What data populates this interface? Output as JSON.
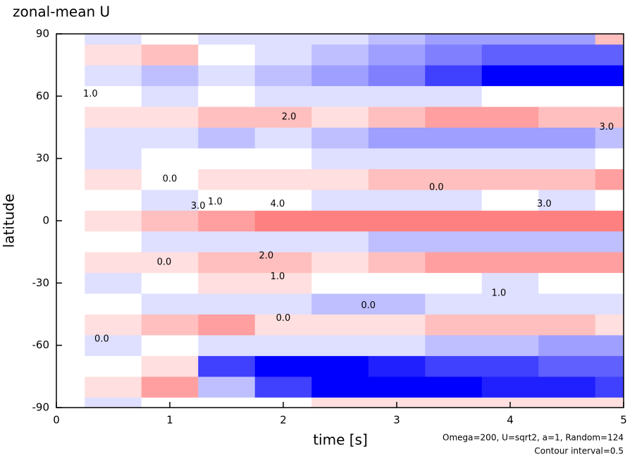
{
  "chart_data": {
    "type": "contour",
    "title": "zonal-mean U",
    "xlabel": "time [s]",
    "ylabel": "latitude",
    "notes": [
      "Omega=200, U=sqrt2, a=1, Random=124",
      "Contour interval=0.5"
    ],
    "xlim": [
      0,
      5
    ],
    "ylim": [
      -90,
      90
    ],
    "xticks": [
      0,
      1,
      2,
      3,
      4,
      5
    ],
    "yticks": [
      -90,
      -60,
      -30,
      0,
      30,
      60,
      90
    ],
    "clim": [
      -8,
      8
    ],
    "negative_color": "#0000ff",
    "positive_color": "#ff0000",
    "x": [
      0,
      0.5,
      1,
      1.5,
      2,
      2.5,
      3,
      3.5,
      4,
      4.5,
      5
    ],
    "y": [
      -90,
      -80,
      -70,
      -60,
      -50,
      -40,
      -30,
      -20,
      -10,
      0,
      10,
      20,
      30,
      40,
      50,
      60,
      70,
      80,
      90
    ],
    "z": [
      [
        0,
        -1,
        0,
        0,
        0,
        1,
        1,
        1,
        1,
        1,
        1
      ],
      [
        0,
        1,
        3,
        -2,
        -6,
        -8,
        -8,
        -8,
        -7,
        -7,
        -6
      ],
      [
        0,
        0,
        1,
        -6,
        -8,
        -8,
        -7,
        -6,
        -6,
        -5,
        -5
      ],
      [
        0,
        -1,
        0,
        -1,
        -1,
        -1,
        -1,
        -2,
        -2,
        -3,
        -3
      ],
      [
        0,
        1,
        2,
        3,
        1,
        1,
        1,
        2,
        2,
        2,
        1
      ],
      [
        0,
        0,
        -1,
        -1,
        -1,
        -2,
        -2,
        -1,
        -1,
        -1,
        -1
      ],
      [
        0,
        -1,
        0,
        1,
        1,
        0,
        0,
        0,
        -1,
        0,
        0
      ],
      [
        0,
        1,
        1,
        2,
        2,
        1,
        2,
        3,
        3,
        3,
        3
      ],
      [
        0,
        0,
        -1,
        -1,
        -1,
        -1,
        -2,
        -2,
        -2,
        -2,
        -2
      ],
      [
        0,
        1,
        2,
        3,
        4,
        4,
        4,
        4,
        4,
        4,
        4
      ],
      [
        0,
        0,
        -1,
        0,
        0,
        -1,
        -1,
        -1,
        0,
        -1,
        0
      ],
      [
        0,
        1,
        0,
        1,
        1,
        1,
        2,
        2,
        2,
        2,
        3
      ],
      [
        0,
        -1,
        0,
        0,
        0,
        -1,
        -1,
        -1,
        -1,
        -1,
        0
      ],
      [
        0,
        -1,
        -1,
        -2,
        -1,
        -2,
        -3,
        -3,
        -3,
        -3,
        -2
      ],
      [
        0,
        1,
        1,
        2,
        2,
        1,
        2,
        3,
        3,
        2,
        2
      ],
      [
        0,
        0,
        -1,
        0,
        -1,
        -1,
        -1,
        -1,
        0,
        0,
        0
      ],
      [
        0,
        -1,
        -2,
        -1,
        -2,
        -3,
        -4,
        -6,
        -8,
        -8,
        -8
      ],
      [
        0,
        1,
        2,
        0,
        -1,
        -2,
        -3,
        -4,
        -5,
        -5,
        -5
      ],
      [
        0,
        -1,
        0,
        -1,
        -1,
        -1,
        -2,
        -3,
        -3,
        -3,
        2
      ]
    ],
    "contour_labels": [
      {
        "x": 2.05,
        "y": 50,
        "label": "2.0"
      },
      {
        "x": 1.95,
        "y": 8,
        "label": "4.0"
      },
      {
        "x": 1.25,
        "y": 7,
        "label": "3.0"
      },
      {
        "x": 1.85,
        "y": -17,
        "label": "2.0"
      },
      {
        "x": 0.95,
        "y": -20,
        "label": "0.0"
      },
      {
        "x": 0.4,
        "y": -57,
        "label": "0.0"
      },
      {
        "x": 2.0,
        "y": -47,
        "label": "0.0"
      },
      {
        "x": 2.75,
        "y": -41,
        "label": "0.0"
      },
      {
        "x": 0.3,
        "y": 61,
        "label": "1.0"
      },
      {
        "x": 1.0,
        "y": 20,
        "label": "0.0"
      },
      {
        "x": 1.4,
        "y": 9,
        "label": "1.0"
      },
      {
        "x": 1.95,
        "y": -27,
        "label": "1.0"
      },
      {
        "x": 3.9,
        "y": -35,
        "label": "1.0"
      },
      {
        "x": 3.35,
        "y": 16,
        "label": "0.0"
      },
      {
        "x": 4.3,
        "y": 8,
        "label": "3.0"
      },
      {
        "x": 4.85,
        "y": 45,
        "label": "3.0"
      }
    ]
  }
}
